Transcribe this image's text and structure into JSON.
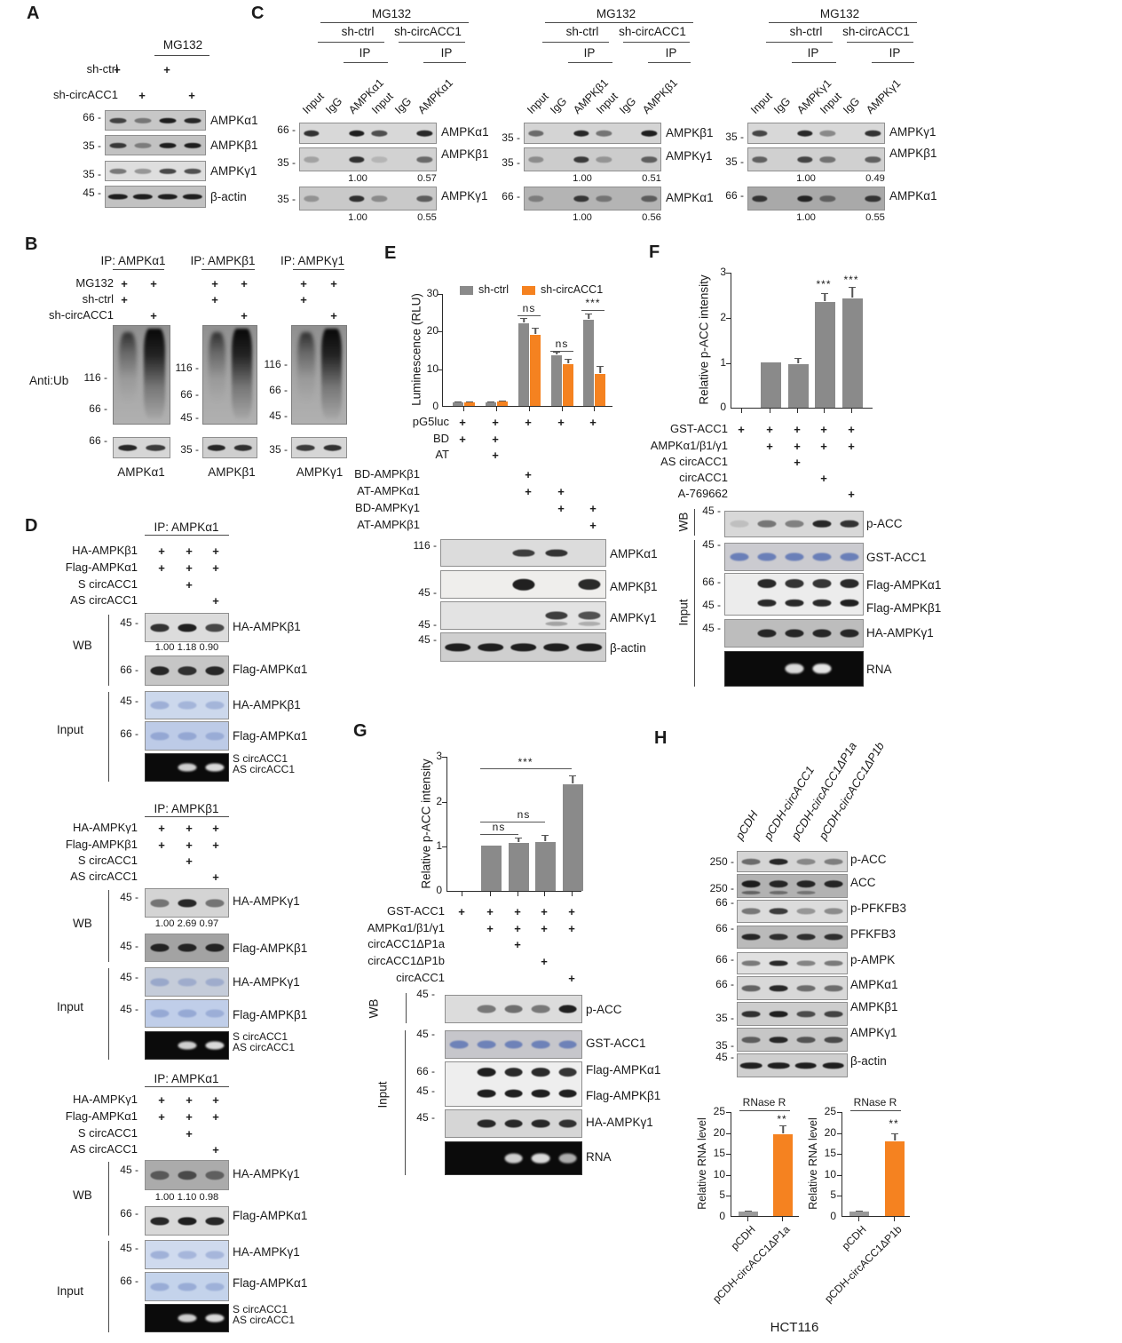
{
  "colors": {
    "orange": "#F58220",
    "bar_gray": "#8a8a8a"
  },
  "panelA": {
    "label": "A",
    "mg132": "MG132",
    "rows": [
      {
        "label": "sh-ctrl",
        "plus": [
          1,
          0,
          1,
          0
        ]
      },
      {
        "label": "sh-circACC1",
        "plus": [
          0,
          1,
          0,
          1
        ]
      }
    ],
    "blots": [
      {
        "mw": "66",
        "label": "AMPKα1"
      },
      {
        "mw": "35",
        "label": "AMPKβ1"
      },
      {
        "mw": "35",
        "label": "AMPKγ1"
      },
      {
        "mw": "45",
        "label": "β-actin"
      }
    ]
  },
  "panelB": {
    "label": "B",
    "anti_ub": "Anti:Ub",
    "rows": [
      {
        "label": "MG132",
        "plus": [
          1,
          1,
          1,
          1,
          1,
          1
        ]
      },
      {
        "label": "sh-ctrl",
        "plus": [
          1,
          0,
          1,
          0,
          1,
          0
        ]
      },
      {
        "label": "sh-circACC1",
        "plus": [
          0,
          1,
          0,
          1,
          0,
          1
        ]
      }
    ],
    "groups": [
      {
        "ip": "IP: AMPKα1",
        "mws": [
          "116",
          "66"
        ],
        "bottom_mw": "66",
        "label": "AMPKα1"
      },
      {
        "ip": "IP: AMPKβ1",
        "mws": [
          "116",
          "66",
          "45"
        ],
        "bottom_mw": "35",
        "label": "AMPKβ1"
      },
      {
        "ip": "IP: AMPKγ1",
        "mws": [
          "116",
          "66",
          "45"
        ],
        "bottom_mw": "35",
        "label": "AMPKγ1"
      }
    ]
  },
  "panelC": {
    "label": "C",
    "groups": [
      {
        "mg132": "MG132",
        "sub": [
          "sh-ctrl",
          "sh-circACC1"
        ],
        "ip": [
          "IP",
          "IP"
        ],
        "lanes": [
          "Input",
          "IgG",
          "AMPKα1",
          "Input",
          "IgG",
          "AMPKα1"
        ],
        "blots": [
          {
            "mw": "66",
            "label": "AMPKα1"
          },
          {
            "mw": "35",
            "label": "AMPKβ1",
            "vals": [
              "1.00",
              "0.57"
            ]
          },
          {
            "mw": "35",
            "label": "AMPKγ1",
            "vals": [
              "1.00",
              "0.55"
            ]
          }
        ]
      },
      {
        "mg132": "MG132",
        "sub": [
          "sh-ctrl",
          "sh-circACC1"
        ],
        "ip": [
          "IP",
          "IP"
        ],
        "lanes": [
          "Input",
          "IgG",
          "AMPKβ1",
          "Input",
          "IgG",
          "AMPKβ1"
        ],
        "blots": [
          {
            "mw": "35",
            "label": "AMPKβ1"
          },
          {
            "mw": "35",
            "label": "AMPKγ1",
            "vals": [
              "1.00",
              "0.51"
            ]
          },
          {
            "mw": "66",
            "label": "AMPKα1",
            "vals": [
              "1.00",
              "0.56"
            ]
          }
        ]
      },
      {
        "mg132": "MG132",
        "sub": [
          "sh-ctrl",
          "sh-circACC1"
        ],
        "ip": [
          "IP",
          "IP"
        ],
        "lanes": [
          "Input",
          "IgG",
          "AMPKγ1",
          "Input",
          "IgG",
          "AMPKγ1"
        ],
        "blots": [
          {
            "mw": "35",
            "label": "AMPKγ1"
          },
          {
            "mw": "35",
            "label": "AMPKβ1",
            "vals": [
              "1.00",
              "0.49"
            ]
          },
          {
            "mw": "66",
            "label": "AMPKα1",
            "vals": [
              "1.00",
              "0.55"
            ]
          }
        ]
      }
    ]
  },
  "panelD": {
    "label": "D",
    "wb": "WB",
    "input": "Input",
    "blocks": [
      {
        "ip": "IP: AMPKα1",
        "rows": [
          {
            "label": "HA-AMPKβ1",
            "plus": [
              1,
              1,
              1
            ]
          },
          {
            "label": "Flag-AMPKα1",
            "plus": [
              1,
              1,
              1
            ]
          },
          {
            "label": "S circACC1",
            "plus": [
              0,
              1,
              0
            ]
          },
          {
            "label": "AS circACC1",
            "plus": [
              0,
              0,
              1
            ]
          }
        ],
        "wb": [
          {
            "mw": "45",
            "label": "HA-AMPKβ1",
            "vals": "1.00 1.18 0.90"
          },
          {
            "mw": "66",
            "label": "Flag-AMPKα1"
          }
        ],
        "input": [
          {
            "mw": "45",
            "label": "HA-AMPKβ1"
          },
          {
            "mw": "66",
            "label": "Flag-AMPKα1"
          }
        ],
        "gel": [
          "S circACC1",
          "AS circACC1"
        ]
      },
      {
        "ip": "IP: AMPKβ1",
        "rows": [
          {
            "label": "HA-AMPKγ1",
            "plus": [
              1,
              1,
              1
            ]
          },
          {
            "label": "Flag-AMPKβ1",
            "plus": [
              1,
              1,
              1
            ]
          },
          {
            "label": "S circACC1",
            "plus": [
              0,
              1,
              0
            ]
          },
          {
            "label": "AS circACC1",
            "plus": [
              0,
              0,
              1
            ]
          }
        ],
        "wb": [
          {
            "mw": "45",
            "label": "HA-AMPKγ1",
            "vals": "1.00 2.69 0.97"
          },
          {
            "mw": "45",
            "label": "Flag-AMPKβ1"
          }
        ],
        "input": [
          {
            "mw": "45",
            "label": "HA-AMPKγ1"
          },
          {
            "mw": "45",
            "label": "Flag-AMPKβ1"
          }
        ],
        "gel": [
          "S circACC1",
          "AS circACC1"
        ]
      },
      {
        "ip": "IP: AMPKα1",
        "rows": [
          {
            "label": "HA-AMPKγ1",
            "plus": [
              1,
              1,
              1
            ]
          },
          {
            "label": "Flag-AMPKα1",
            "plus": [
              1,
              1,
              1
            ]
          },
          {
            "label": "S circACC1",
            "plus": [
              0,
              1,
              0
            ]
          },
          {
            "label": "AS circACC1",
            "plus": [
              0,
              0,
              1
            ]
          }
        ],
        "wb": [
          {
            "mw": "45",
            "label": "HA-AMPKγ1",
            "vals": "1.00 1.10 0.98"
          },
          {
            "mw": "66",
            "label": "Flag-AMPKα1"
          }
        ],
        "input": [
          {
            "mw": "45",
            "label": "HA-AMPKγ1"
          },
          {
            "mw": "66",
            "label": "Flag-AMPKα1"
          }
        ],
        "gel": [
          "S circACC1",
          "AS circACC1"
        ]
      }
    ]
  },
  "panelE": {
    "label": "E",
    "rows": [
      {
        "label": "pG5luc",
        "plus": [
          1,
          1,
          1,
          1,
          1
        ]
      },
      {
        "label": "BD",
        "plus": [
          1,
          1,
          0,
          0,
          0
        ]
      },
      {
        "label": "AT",
        "plus": [
          0,
          1,
          0,
          0,
          0
        ]
      },
      {
        "label": "BD-AMPKβ1",
        "plus": [
          0,
          0,
          1,
          0,
          0
        ]
      },
      {
        "label": "AT-AMPKα1",
        "plus": [
          0,
          0,
          1,
          1,
          0
        ]
      },
      {
        "label": "BD-AMPKγ1",
        "plus": [
          0,
          0,
          0,
          1,
          1
        ]
      },
      {
        "label": "AT-AMPKβ1",
        "plus": [
          0,
          0,
          0,
          0,
          1
        ]
      }
    ],
    "blots": [
      {
        "mw": "116",
        "label": "AMPKα1"
      },
      {
        "mw": "45",
        "label": "AMPKβ1"
      },
      {
        "mw": "45",
        "label": "AMPKγ1"
      },
      {
        "mw": "45",
        "label": "β-actin"
      }
    ]
  },
  "panelF": {
    "label": "F",
    "wb": "WB",
    "input": "Input",
    "rows": [
      {
        "label": "GST-ACC1",
        "plus": [
          1,
          1,
          1,
          1,
          1
        ]
      },
      {
        "label": "AMPKα1/β1/γ1",
        "plus": [
          0,
          1,
          1,
          1,
          1
        ]
      },
      {
        "label": "AS circACC1",
        "plus": [
          0,
          0,
          1,
          0,
          0
        ]
      },
      {
        "label": "circACC1",
        "plus": [
          0,
          0,
          0,
          1,
          0
        ]
      },
      {
        "label": "A-769662",
        "plus": [
          0,
          0,
          0,
          0,
          1
        ]
      }
    ],
    "blots": [
      {
        "mw": "45",
        "label": "p-ACC"
      },
      {
        "mw": "45",
        "label": "GST-ACC1"
      },
      {
        "mw": "66",
        "label": "Flag-AMPKα1"
      },
      {
        "mw": "45",
        "label": "Flag-AMPKβ1"
      },
      {
        "mw": "45",
        "label": "HA-AMPKγ1"
      },
      {
        "label": "RNA"
      }
    ]
  },
  "panelG": {
    "label": "G",
    "wb": "WB",
    "input": "Input",
    "rows": [
      {
        "label": "GST-ACC1",
        "plus": [
          1,
          1,
          1,
          1,
          1
        ]
      },
      {
        "label": "AMPKα1/β1/γ1",
        "plus": [
          0,
          1,
          1,
          1,
          1
        ]
      },
      {
        "label": "circACC1ΔP1a",
        "plus": [
          0,
          0,
          1,
          0,
          0
        ]
      },
      {
        "label": "circACC1ΔP1b",
        "plus": [
          0,
          0,
          0,
          1,
          0
        ]
      },
      {
        "label": "circACC1",
        "plus": [
          0,
          0,
          0,
          0,
          1
        ]
      }
    ],
    "blots": [
      {
        "mw": "45",
        "label": "p-ACC"
      },
      {
        "mw": "45",
        "label": "GST-ACC1"
      },
      {
        "mw": "66",
        "label": "Flag-AMPKα1"
      },
      {
        "mw": "45",
        "label": "Flag-AMPKβ1"
      },
      {
        "mw": "45",
        "label": "HA-AMPKγ1"
      },
      {
        "label": "RNA"
      }
    ]
  },
  "panelH": {
    "label": "H",
    "lanes": [
      "pCDH",
      "pCDH-circACC1",
      "pCDH-circACC1ΔP1a",
      "pCDH-circACC1ΔP1b"
    ],
    "blots": [
      {
        "mw": "250",
        "label": "p-ACC"
      },
      {
        "mw": "250",
        "label": "ACC"
      },
      {
        "mw": "66",
        "label": "p-PFKFB3"
      },
      {
        "mw": "66",
        "label": "PFKFB3"
      },
      {
        "mw": "66",
        "label": "p-AMPK"
      },
      {
        "mw": "66",
        "label": "AMPKα1"
      },
      {
        "mw": "35",
        "label": "AMPKβ1"
      },
      {
        "mw": "35",
        "label": "AMPKγ1"
      },
      {
        "mw": "45",
        "label": "β-actin"
      }
    ],
    "cell_line": "HCT116"
  },
  "chart_data": [
    {
      "type": "bar",
      "ylabel": "Luminescence (RLU)",
      "yticks": [
        "0",
        "10",
        "20",
        "30"
      ],
      "ylim": [
        0,
        30
      ],
      "legend": [
        "sh-ctrl",
        "sh-circACC1"
      ],
      "series": [
        {
          "name": "sh-ctrl",
          "values": [
            1,
            1,
            22,
            13.5,
            23
          ],
          "errors": [
            0.15,
            0.15,
            1.5,
            0.9,
            1.6
          ]
        },
        {
          "name": "sh-circACC1",
          "values": [
            1,
            1.1,
            19,
            11,
            8.4
          ],
          "errors": [
            0.15,
            0.2,
            1.9,
            1.6,
            2.3
          ]
        }
      ],
      "annotations": [
        "ns",
        "ns",
        "***"
      ]
    },
    {
      "type": "bar",
      "ylabel": "Relative p-ACC intensity",
      "yticks": [
        "0",
        "1",
        "2",
        "3"
      ],
      "ylim": [
        0,
        3
      ],
      "values": [
        0,
        1,
        0.97,
        2.33,
        2.42
      ],
      "errors": [
        0,
        0,
        0.13,
        0.2,
        0.24
      ],
      "sig": [
        "",
        "",
        "",
        "***",
        "***"
      ]
    },
    {
      "type": "bar",
      "ylabel": "Relative p-ACC intensity",
      "yticks": [
        "0",
        "1",
        "2",
        "3"
      ],
      "ylim": [
        0,
        3
      ],
      "values": [
        0,
        1,
        1.06,
        1.09,
        2.36
      ],
      "errors": [
        0,
        0,
        0.12,
        0.15,
        0.21
      ],
      "annotations": [
        "ns",
        "ns",
        "***"
      ]
    },
    {
      "type": "bar",
      "title": "RNase R",
      "ylabel": "Relative RNA level",
      "yticks": [
        "0",
        "5",
        "10",
        "15",
        "20",
        "25"
      ],
      "ylim": [
        0,
        25
      ],
      "categories": [
        "pCDH",
        "pCDH-circACC1ΔP1a"
      ],
      "values": [
        1,
        19.4
      ],
      "errors": [
        0.15,
        2.3
      ],
      "sig": [
        "",
        "**"
      ]
    },
    {
      "type": "bar",
      "title": "RNase R",
      "ylabel": "Relative RNA level",
      "yticks": [
        "0",
        "5",
        "10",
        "15",
        "20",
        "25"
      ],
      "ylim": [
        0,
        25
      ],
      "categories": [
        "pCDH",
        "pCDH-circACC1ΔP1b"
      ],
      "values": [
        1.1,
        17.7
      ],
      "errors": [
        0.2,
        2.0
      ],
      "sig": [
        "",
        "**"
      ]
    }
  ]
}
